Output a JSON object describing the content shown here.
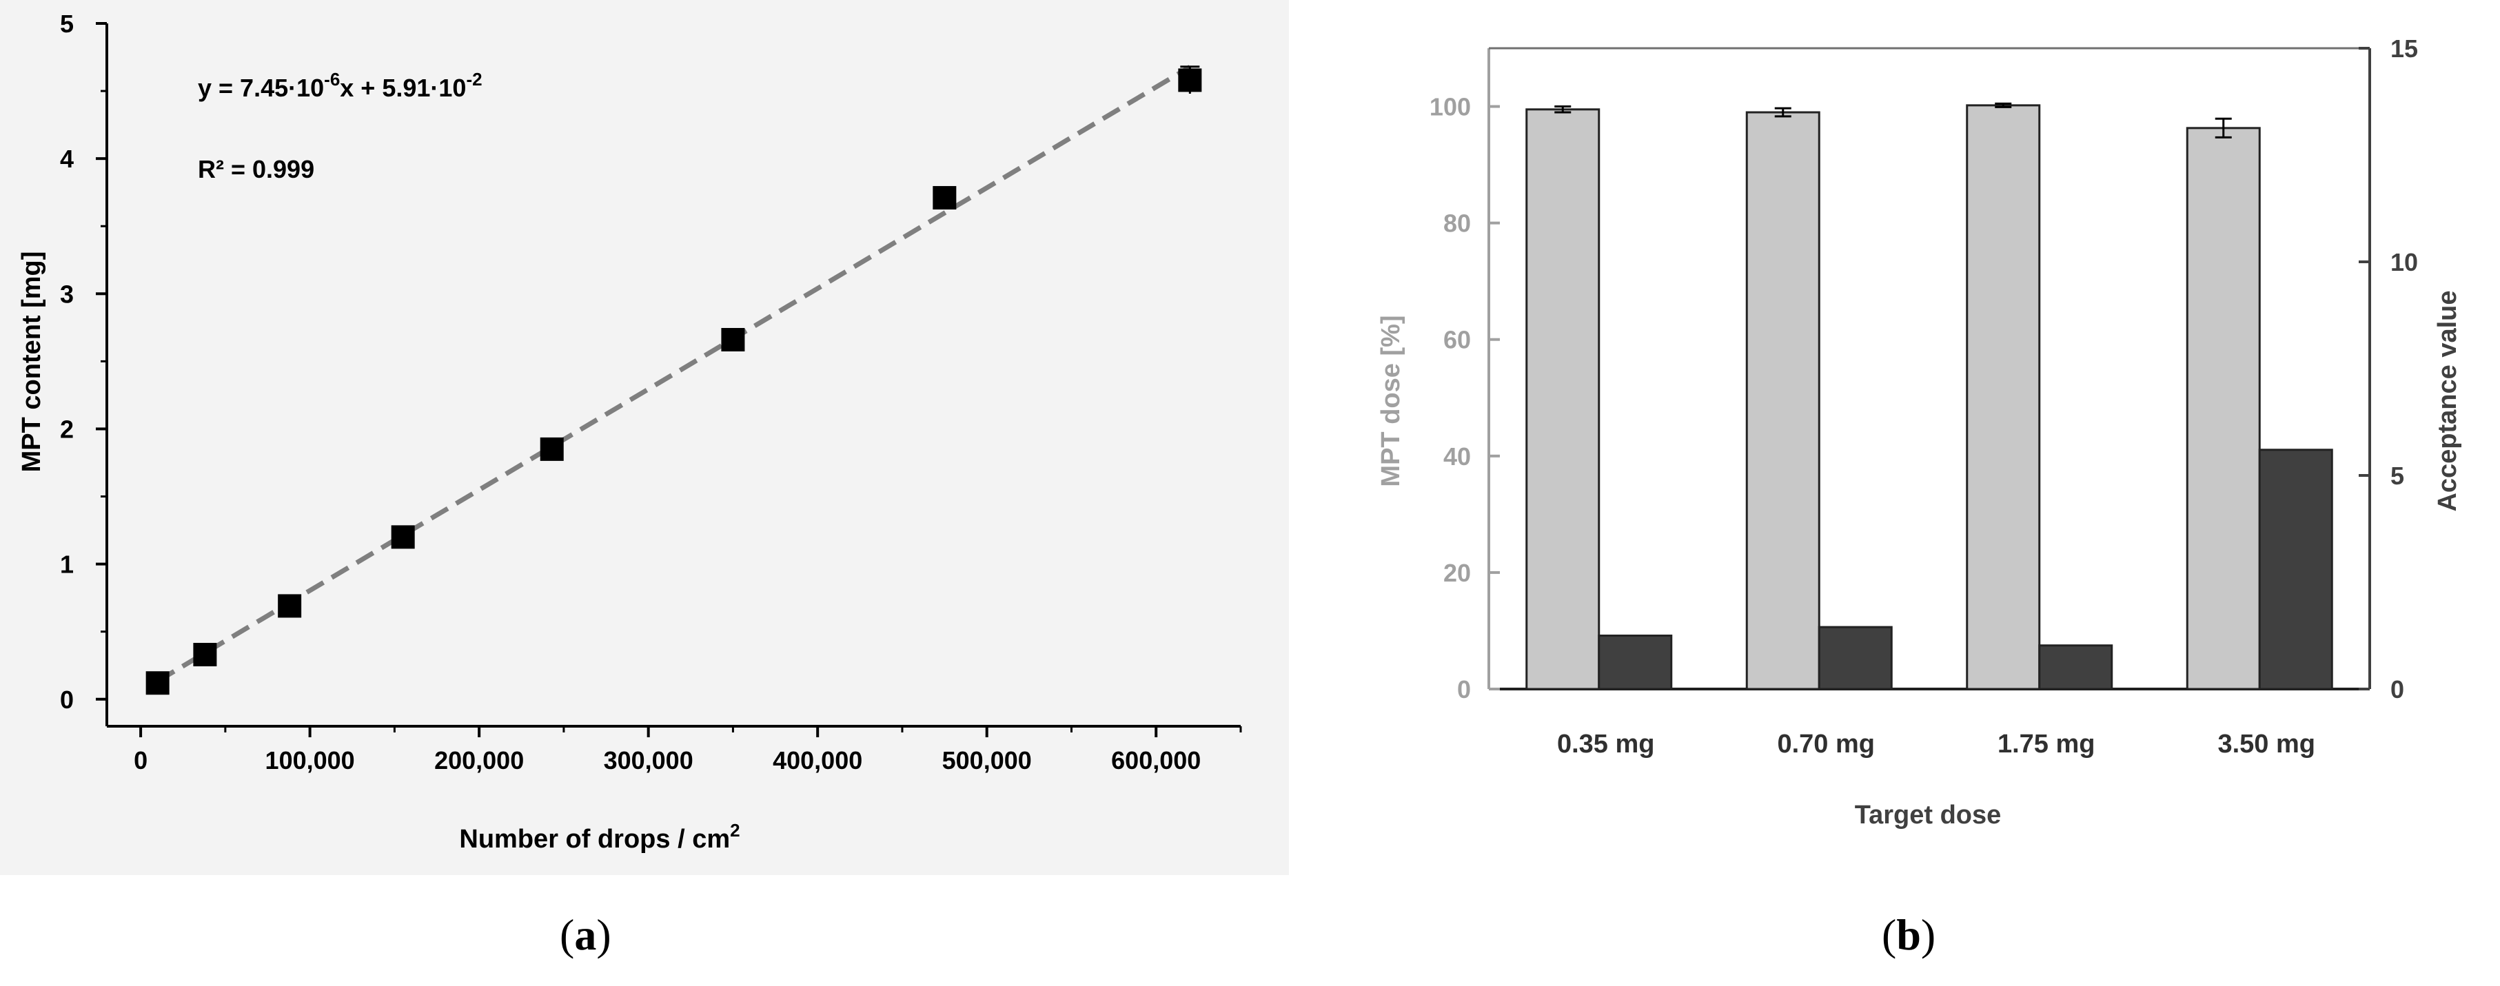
{
  "chart_data": [
    {
      "panel": "a",
      "type": "scatter",
      "xlabel": "Number of drops / cm",
      "xlabel_sup": "2",
      "ylabel": "MPT content [mg]",
      "xlim": [
        -20000,
        650000
      ],
      "ylim": [
        -0.2,
        5
      ],
      "xticks": [
        0,
        100000,
        200000,
        300000,
        400000,
        500000,
        600000
      ],
      "xtick_labels": [
        "0",
        "100,000",
        "200,000",
        "300,000",
        "400,000",
        "500,000",
        "600,000"
      ],
      "yticks": [
        0,
        1,
        2,
        3,
        4,
        5
      ],
      "ytick_labels": [
        "0",
        "1",
        "2",
        "3",
        "4",
        "5"
      ],
      "points": [
        {
          "x": 10000,
          "y": 0.12
        },
        {
          "x": 38000,
          "y": 0.33
        },
        {
          "x": 88000,
          "y": 0.69
        },
        {
          "x": 155000,
          "y": 1.2
        },
        {
          "x": 243000,
          "y": 1.85
        },
        {
          "x": 350000,
          "y": 2.66
        },
        {
          "x": 475000,
          "y": 3.71
        },
        {
          "x": 620000,
          "y": 4.58
        }
      ],
      "fit": {
        "slope": 7.45e-06,
        "intercept": 0.0591,
        "x_range": [
          10000,
          620000
        ]
      },
      "equation": {
        "prefix": "y = 7.45·10",
        "exp1": "-6",
        "middle": "x + 5.91·10",
        "exp2": "-2"
      },
      "r2_text": "R² = 0.999",
      "colors": {
        "marker": "#000000",
        "fit": "#7f7f7f",
        "axis": "#000000"
      }
    },
    {
      "panel": "b",
      "type": "bar",
      "xlabel": "Target dose",
      "ylabel_left": "MPT dose [%]",
      "ylabel_right": "Acceptance value",
      "categories": [
        "0.35 mg",
        "0.70 mg",
        "1.75 mg",
        "3.50 mg"
      ],
      "ylim_left": [
        0,
        110
      ],
      "ylim_right": [
        0,
        15
      ],
      "yticks_left": [
        0,
        20,
        40,
        60,
        80,
        100
      ],
      "yticks_right": [
        0,
        5,
        10,
        15
      ],
      "series": [
        {
          "axis": "left",
          "values": [
            99.5,
            99.0,
            100.2,
            96.3
          ],
          "errors": [
            0.5,
            0.7,
            0.3,
            1.6
          ],
          "color": "#c8c8c8"
        },
        {
          "axis": "right",
          "values": [
            1.25,
            1.45,
            1.02,
            5.6
          ],
          "color": "#404040"
        }
      ],
      "colors": {
        "left_axis": "#a0a0a0",
        "right_axis": "#404040"
      }
    }
  ],
  "captions": {
    "a": "a",
    "b": "b"
  }
}
